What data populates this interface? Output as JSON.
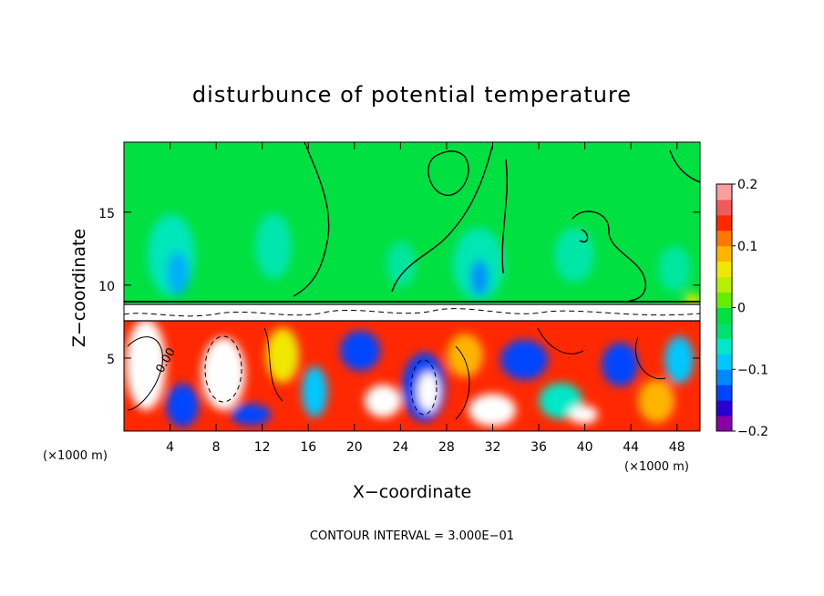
{
  "chart_data": {
    "type": "heatmap",
    "title": "disturbunce of potential temperature",
    "xlabel": "X−coordinate",
    "ylabel": "Z−coordinate",
    "x_unit": "(×1000 m)",
    "x_ticks": [
      4,
      8,
      12,
      16,
      20,
      24,
      28,
      32,
      36,
      40,
      44,
      48
    ],
    "y_ticks": [
      5,
      10,
      15
    ],
    "xlim": [
      0,
      50
    ],
    "ylim": [
      0,
      19.8
    ],
    "colorbar": {
      "ticks": [
        0.2,
        0.1,
        0,
        -0.1,
        -0.2
      ],
      "tick_labels": [
        "0.2",
        "0.1",
        "0",
        "−0.1",
        "−0.2"
      ],
      "range": [
        -0.2,
        0.2
      ],
      "colors": [
        "#8a00a8",
        "#2800d0",
        "#0044ff",
        "#0088ff",
        "#00c8ff",
        "#00e8c8",
        "#00e070",
        "#00e040",
        "#66ee00",
        "#b4f000",
        "#f0e800",
        "#ffb400",
        "#ff7800",
        "#ff2800",
        "#f05a5a",
        "#f8a0a0"
      ]
    },
    "contour_labels": [
      "0.00"
    ],
    "contour_interval": "CONTOUR INTERVAL = 3.000E−01",
    "grid": false,
    "background_value": 0
  }
}
